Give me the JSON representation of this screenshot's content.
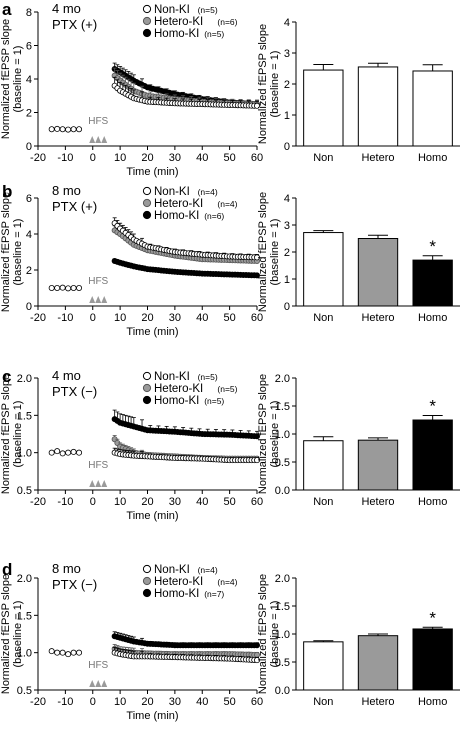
{
  "chart_data": [
    {
      "panel": "a",
      "title": "4 mo",
      "subtitle": "PTX (+)",
      "time_course": {
        "type": "scatter",
        "xlabel": "Time (min)",
        "ylabel": "Normalized fEPSP slope",
        "ylabel2": "(baseline = 1)",
        "xlim": [
          -20,
          60
        ],
        "ylim": [
          0,
          8
        ],
        "xticks": [
          "-20",
          "-10",
          "0",
          "10",
          "20",
          "30",
          "40",
          "50",
          "60"
        ],
        "yticks": [
          "0",
          "2",
          "4",
          "6",
          "8"
        ],
        "ytick_values": [
          0,
          2,
          4,
          6,
          8
        ],
        "annotation": "HFS",
        "series": [
          {
            "name": "Non-KI",
            "n": "(n=5)",
            "style": "open",
            "baseline": {
              "x": [
                -15,
                -13,
                -11,
                -9,
                -7,
                -5
              ],
              "y": [
                1.0,
                1.02,
                1.0,
                0.98,
                1.0,
                1.0
              ]
            },
            "post": {
              "x_start": 8,
              "x_end": 60,
              "x_step": 1,
              "points": [
                [
                  8,
                  3.6
                ],
                [
                  10,
                  3.3
                ],
                [
                  15,
                  2.85
                ],
                [
                  20,
                  2.65
                ],
                [
                  30,
                  2.55
                ],
                [
                  40,
                  2.5
                ],
                [
                  50,
                  2.45
                ],
                [
                  60,
                  2.4
                ]
              ],
              "err": 0.5
            }
          },
          {
            "name": "Hetero-KI",
            "n": "(n=6)",
            "style": "gray",
            "post": {
              "x_start": 8,
              "x_end": 60,
              "x_step": 1,
              "points": [
                [
                  8,
                  4.2
                ],
                [
                  10,
                  3.9
                ],
                [
                  15,
                  3.3
                ],
                [
                  20,
                  3.0
                ],
                [
                  30,
                  2.8
                ],
                [
                  40,
                  2.65
                ],
                [
                  50,
                  2.55
                ],
                [
                  60,
                  2.5
                ]
              ],
              "err": 0.45
            }
          },
          {
            "name": "Homo-KI",
            "n": "(n=5)",
            "style": "filled",
            "post": {
              "x_start": 8,
              "x_end": 60,
              "x_step": 1,
              "points": [
                [
                  8,
                  4.6
                ],
                [
                  10,
                  4.4
                ],
                [
                  15,
                  3.9
                ],
                [
                  20,
                  3.5
                ],
                [
                  30,
                  3.1
                ],
                [
                  40,
                  2.8
                ],
                [
                  50,
                  2.6
                ],
                [
                  60,
                  2.5
                ]
              ],
              "err": 0.35
            }
          }
        ]
      },
      "bar": {
        "type": "bar",
        "ylabel": "Normalized fEPSP slope",
        "ylabel2": "(baseline = 1)",
        "categories": [
          "Non",
          "Hetero",
          "Homo"
        ],
        "values": [
          2.45,
          2.55,
          2.42
        ],
        "errors": [
          0.18,
          0.12,
          0.2
        ],
        "fills": [
          "#ffffff",
          "#ffffff",
          "#ffffff"
        ],
        "ylim": [
          0,
          4
        ],
        "yticks": [
          "0",
          "1",
          "2",
          "3",
          "4"
        ],
        "ytick_values": [
          0,
          1,
          2,
          3,
          4
        ],
        "stars": [
          "",
          "",
          ""
        ]
      }
    },
    {
      "panel": "b",
      "title": "8 mo",
      "subtitle": "PTX (+)",
      "time_course": {
        "type": "scatter",
        "xlabel": "Time (min)",
        "ylabel": "Normalized fEPSP slope",
        "ylabel2": "(baseline = 1)",
        "xlim": [
          -20,
          60
        ],
        "ylim": [
          0,
          6
        ],
        "xticks": [
          "-20",
          "-10",
          "0",
          "10",
          "20",
          "30",
          "40",
          "50",
          "60"
        ],
        "yticks": [
          "0",
          "2",
          "4",
          "6"
        ],
        "ytick_values": [
          0,
          2,
          4,
          6
        ],
        "annotation": "HFS",
        "series": [
          {
            "name": "Non-KI",
            "n": "(n=4)",
            "style": "open",
            "baseline": {
              "x": [
                -15,
                -13,
                -11,
                -9,
                -7,
                -5
              ],
              "y": [
                1.0,
                1.0,
                1.02,
                0.98,
                1.0,
                1.0
              ]
            },
            "post": {
              "x_start": 8,
              "x_end": 60,
              "x_step": 1,
              "points": [
                [
                  8,
                  4.6
                ],
                [
                  10,
                  4.3
                ],
                [
                  15,
                  3.7
                ],
                [
                  20,
                  3.3
                ],
                [
                  30,
                  3.0
                ],
                [
                  40,
                  2.85
                ],
                [
                  50,
                  2.75
                ],
                [
                  60,
                  2.7
                ]
              ],
              "err": 0.3
            }
          },
          {
            "name": "Hetero-KI",
            "n": "(n=4)",
            "style": "gray",
            "post": {
              "x_start": 8,
              "x_end": 60,
              "x_step": 1,
              "points": [
                [
                  8,
                  4.2
                ],
                [
                  10,
                  4.0
                ],
                [
                  15,
                  3.4
                ],
                [
                  20,
                  3.1
                ],
                [
                  30,
                  2.8
                ],
                [
                  40,
                  2.6
                ],
                [
                  50,
                  2.55
                ],
                [
                  60,
                  2.5
                ]
              ],
              "err": 0.25
            }
          },
          {
            "name": "Homo-KI",
            "n": "(n=6)",
            "style": "filled",
            "post": {
              "x_start": 8,
              "x_end": 60,
              "x_step": 1,
              "points": [
                [
                  8,
                  2.5
                ],
                [
                  10,
                  2.4
                ],
                [
                  15,
                  2.2
                ],
                [
                  20,
                  2.05
                ],
                [
                  30,
                  1.9
                ],
                [
                  40,
                  1.8
                ],
                [
                  50,
                  1.75
                ],
                [
                  60,
                  1.7
                ]
              ],
              "err": 0.12
            }
          }
        ]
      },
      "bar": {
        "type": "bar",
        "ylabel": "Normalized fEPSP slope",
        "ylabel2": "(baseline = 1)",
        "categories": [
          "Non",
          "Hetero",
          "Homo"
        ],
        "values": [
          2.72,
          2.5,
          1.7
        ],
        "errors": [
          0.07,
          0.12,
          0.16
        ],
        "fills": [
          "#ffffff",
          "#9a9a9a",
          "#000000"
        ],
        "ylim": [
          0,
          4
        ],
        "yticks": [
          "0",
          "1",
          "2",
          "3",
          "4"
        ],
        "ytick_values": [
          0,
          1,
          2,
          3,
          4
        ],
        "stars": [
          "",
          "",
          "*"
        ]
      }
    },
    {
      "panel": "c",
      "title": "4 mo",
      "subtitle": "PTX (−)",
      "time_course": {
        "type": "scatter",
        "xlabel": "Time (min)",
        "ylabel": "Normalized fEPSP slope",
        "ylabel2": "(baseline = 1)",
        "xlim": [
          -20,
          60
        ],
        "ylim": [
          0.5,
          2.0
        ],
        "xticks": [
          "-20",
          "-10",
          "0",
          "10",
          "20",
          "30",
          "40",
          "50",
          "60"
        ],
        "yticks": [
          "0.5",
          "1.0",
          "1.5",
          "2.0"
        ],
        "ytick_values": [
          0.5,
          1.0,
          1.5,
          2.0
        ],
        "annotation": "HFS",
        "series": [
          {
            "name": "Non-KI",
            "n": "(n=5)",
            "style": "open",
            "baseline": {
              "x": [
                -15,
                -13,
                -11,
                -9,
                -7,
                -5
              ],
              "y": [
                1.0,
                1.02,
                0.99,
                1.0,
                1.01,
                1.0
              ]
            },
            "post": {
              "x_start": 8,
              "x_end": 60,
              "x_step": 1,
              "points": [
                [
                  8,
                  1.0
                ],
                [
                  10,
                  0.98
                ],
                [
                  15,
                  0.96
                ],
                [
                  20,
                  0.95
                ],
                [
                  30,
                  0.93
                ],
                [
                  40,
                  0.92
                ],
                [
                  50,
                  0.9
                ],
                [
                  60,
                  0.9
                ]
              ],
              "err": 0.06
            }
          },
          {
            "name": "Hetero-KI",
            "n": "(n=5)",
            "style": "gray",
            "post": {
              "x_start": 8,
              "x_end": 60,
              "x_step": 1,
              "points": [
                [
                  8,
                  1.18
                ],
                [
                  10,
                  1.08
                ],
                [
                  15,
                  1.0
                ],
                [
                  20,
                  0.97
                ],
                [
                  30,
                  0.95
                ],
                [
                  40,
                  0.93
                ],
                [
                  50,
                  0.92
                ],
                [
                  60,
                  0.92
                ]
              ],
              "err": 0.05
            }
          },
          {
            "name": "Homo-KI",
            "n": "(n=5)",
            "style": "filled",
            "post": {
              "x_start": 8,
              "x_end": 60,
              "x_step": 1,
              "points": [
                [
                  8,
                  1.45
                ],
                [
                  10,
                  1.4
                ],
                [
                  15,
                  1.35
                ],
                [
                  20,
                  1.3
                ],
                [
                  30,
                  1.28
                ],
                [
                  40,
                  1.25
                ],
                [
                  50,
                  1.24
                ],
                [
                  60,
                  1.22
                ]
              ],
              "err": 0.12
            }
          }
        ]
      },
      "bar": {
        "type": "bar",
        "ylabel": "Normalized fEPSP slope",
        "ylabel2": "(baseline = 1)",
        "categories": [
          "Non",
          "Hetero",
          "Homo"
        ],
        "values": [
          0.88,
          0.89,
          1.25
        ],
        "errors": [
          0.07,
          0.04,
          0.08
        ],
        "fills": [
          "#ffffff",
          "#9a9a9a",
          "#000000"
        ],
        "ylim": [
          0,
          2.0
        ],
        "yticks": [
          "0.0",
          "0.5",
          "1.0",
          "1.5",
          "2.0"
        ],
        "ytick_values": [
          0,
          0.5,
          1.0,
          1.5,
          2.0
        ],
        "stars": [
          "",
          "",
          "*"
        ]
      }
    },
    {
      "panel": "d",
      "title": "8 mo",
      "subtitle": "PTX (−)",
      "time_course": {
        "type": "scatter",
        "xlabel": "Time (min)",
        "ylabel": "Normalized fEPSP slope",
        "ylabel2": "(baseline = 1)",
        "xlim": [
          -20,
          60
        ],
        "ylim": [
          0.5,
          2.0
        ],
        "xticks": [
          "-20",
          "-10",
          "0",
          "10",
          "20",
          "30",
          "40",
          "50",
          "60"
        ],
        "yticks": [
          "0.5",
          "1.0",
          "1.5",
          "2.0"
        ],
        "ytick_values": [
          0.5,
          1.0,
          1.5,
          2.0
        ],
        "annotation": "HFS",
        "series": [
          {
            "name": "Non-KI",
            "n": "(n=4)",
            "style": "open",
            "baseline": {
              "x": [
                -15,
                -13,
                -11,
                -9,
                -7,
                -5
              ],
              "y": [
                1.02,
                1.0,
                1.0,
                0.98,
                1.0,
                1.0
              ]
            },
            "post": {
              "x_start": 8,
              "x_end": 60,
              "x_step": 1,
              "points": [
                [
                  8,
                  1.0
                ],
                [
                  10,
                  0.98
                ],
                [
                  15,
                  0.95
                ],
                [
                  20,
                  0.95
                ],
                [
                  30,
                  0.94
                ],
                [
                  40,
                  0.93
                ],
                [
                  50,
                  0.92
                ],
                [
                  60,
                  0.9
                ]
              ],
              "err": 0.07
            }
          },
          {
            "name": "Hetero-KI",
            "n": "(n=4)",
            "style": "gray",
            "post": {
              "x_start": 8,
              "x_end": 60,
              "x_step": 1,
              "points": [
                [
                  8,
                  1.05
                ],
                [
                  10,
                  1.02
                ],
                [
                  15,
                  1.0
                ],
                [
                  20,
                  0.99
                ],
                [
                  30,
                  0.98
                ],
                [
                  40,
                  0.98
                ],
                [
                  50,
                  0.98
                ],
                [
                  60,
                  0.97
                ]
              ],
              "err": 0.06
            }
          },
          {
            "name": "Homo-KI",
            "n": "(n=7)",
            "style": "filled",
            "post": {
              "x_start": 8,
              "x_end": 60,
              "x_step": 1,
              "points": [
                [
                  8,
                  1.22
                ],
                [
                  10,
                  1.2
                ],
                [
                  15,
                  1.15
                ],
                [
                  20,
                  1.12
                ],
                [
                  30,
                  1.1
                ],
                [
                  40,
                  1.1
                ],
                [
                  50,
                  1.1
                ],
                [
                  60,
                  1.1
                ]
              ],
              "err": 0.06
            }
          }
        ]
      },
      "bar": {
        "type": "bar",
        "ylabel": "Normalized fEPSP slope",
        "ylabel2": "(baseline = 1)",
        "categories": [
          "Non",
          "Hetero",
          "Homo"
        ],
        "values": [
          0.86,
          0.97,
          1.09
        ],
        "errors": [
          0.02,
          0.03,
          0.03
        ],
        "fills": [
          "#ffffff",
          "#9a9a9a",
          "#000000"
        ],
        "ylim": [
          0,
          2.0
        ],
        "yticks": [
          "0.0",
          "0.5",
          "1.0",
          "1.5",
          "2.0"
        ],
        "ytick_values": [
          0,
          0.5,
          1.0,
          1.5,
          2.0
        ],
        "stars": [
          "",
          "",
          "*"
        ]
      }
    }
  ]
}
